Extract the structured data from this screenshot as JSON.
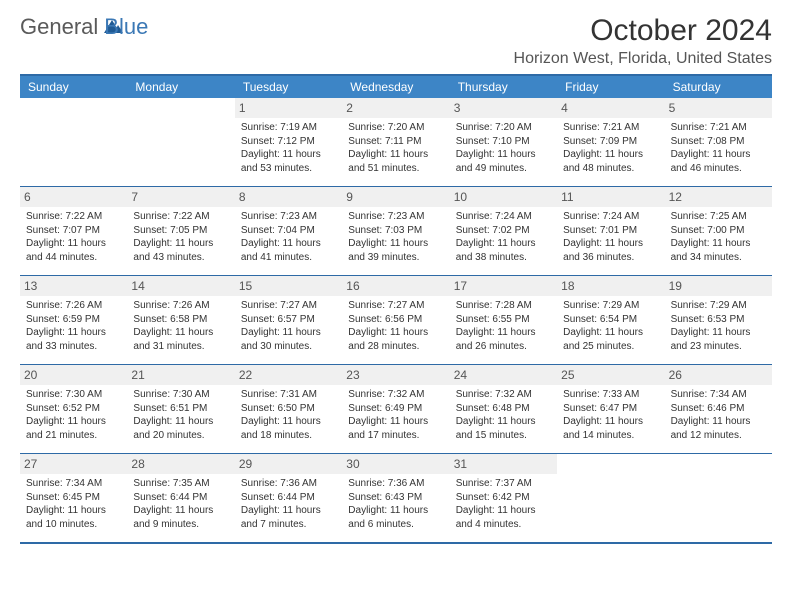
{
  "logo": {
    "text1": "General",
    "text2": "Blue",
    "icon_color": "#1f5a94"
  },
  "title": "October 2024",
  "location": "Horizon West, Florida, United States",
  "header_bg": "#3d85c6",
  "border_color": "#2e6aa6",
  "day_headers": [
    "Sunday",
    "Monday",
    "Tuesday",
    "Wednesday",
    "Thursday",
    "Friday",
    "Saturday"
  ],
  "weeks": [
    {
      "days": [
        {
          "num": "",
          "sunrise": "",
          "sunset": "",
          "daylight": ""
        },
        {
          "num": "",
          "sunrise": "",
          "sunset": "",
          "daylight": ""
        },
        {
          "num": "1",
          "sunrise": "Sunrise: 7:19 AM",
          "sunset": "Sunset: 7:12 PM",
          "daylight": "Daylight: 11 hours and 53 minutes."
        },
        {
          "num": "2",
          "sunrise": "Sunrise: 7:20 AM",
          "sunset": "Sunset: 7:11 PM",
          "daylight": "Daylight: 11 hours and 51 minutes."
        },
        {
          "num": "3",
          "sunrise": "Sunrise: 7:20 AM",
          "sunset": "Sunset: 7:10 PM",
          "daylight": "Daylight: 11 hours and 49 minutes."
        },
        {
          "num": "4",
          "sunrise": "Sunrise: 7:21 AM",
          "sunset": "Sunset: 7:09 PM",
          "daylight": "Daylight: 11 hours and 48 minutes."
        },
        {
          "num": "5",
          "sunrise": "Sunrise: 7:21 AM",
          "sunset": "Sunset: 7:08 PM",
          "daylight": "Daylight: 11 hours and 46 minutes."
        }
      ]
    },
    {
      "days": [
        {
          "num": "6",
          "sunrise": "Sunrise: 7:22 AM",
          "sunset": "Sunset: 7:07 PM",
          "daylight": "Daylight: 11 hours and 44 minutes."
        },
        {
          "num": "7",
          "sunrise": "Sunrise: 7:22 AM",
          "sunset": "Sunset: 7:05 PM",
          "daylight": "Daylight: 11 hours and 43 minutes."
        },
        {
          "num": "8",
          "sunrise": "Sunrise: 7:23 AM",
          "sunset": "Sunset: 7:04 PM",
          "daylight": "Daylight: 11 hours and 41 minutes."
        },
        {
          "num": "9",
          "sunrise": "Sunrise: 7:23 AM",
          "sunset": "Sunset: 7:03 PM",
          "daylight": "Daylight: 11 hours and 39 minutes."
        },
        {
          "num": "10",
          "sunrise": "Sunrise: 7:24 AM",
          "sunset": "Sunset: 7:02 PM",
          "daylight": "Daylight: 11 hours and 38 minutes."
        },
        {
          "num": "11",
          "sunrise": "Sunrise: 7:24 AM",
          "sunset": "Sunset: 7:01 PM",
          "daylight": "Daylight: 11 hours and 36 minutes."
        },
        {
          "num": "12",
          "sunrise": "Sunrise: 7:25 AM",
          "sunset": "Sunset: 7:00 PM",
          "daylight": "Daylight: 11 hours and 34 minutes."
        }
      ]
    },
    {
      "days": [
        {
          "num": "13",
          "sunrise": "Sunrise: 7:26 AM",
          "sunset": "Sunset: 6:59 PM",
          "daylight": "Daylight: 11 hours and 33 minutes."
        },
        {
          "num": "14",
          "sunrise": "Sunrise: 7:26 AM",
          "sunset": "Sunset: 6:58 PM",
          "daylight": "Daylight: 11 hours and 31 minutes."
        },
        {
          "num": "15",
          "sunrise": "Sunrise: 7:27 AM",
          "sunset": "Sunset: 6:57 PM",
          "daylight": "Daylight: 11 hours and 30 minutes."
        },
        {
          "num": "16",
          "sunrise": "Sunrise: 7:27 AM",
          "sunset": "Sunset: 6:56 PM",
          "daylight": "Daylight: 11 hours and 28 minutes."
        },
        {
          "num": "17",
          "sunrise": "Sunrise: 7:28 AM",
          "sunset": "Sunset: 6:55 PM",
          "daylight": "Daylight: 11 hours and 26 minutes."
        },
        {
          "num": "18",
          "sunrise": "Sunrise: 7:29 AM",
          "sunset": "Sunset: 6:54 PM",
          "daylight": "Daylight: 11 hours and 25 minutes."
        },
        {
          "num": "19",
          "sunrise": "Sunrise: 7:29 AM",
          "sunset": "Sunset: 6:53 PM",
          "daylight": "Daylight: 11 hours and 23 minutes."
        }
      ]
    },
    {
      "days": [
        {
          "num": "20",
          "sunrise": "Sunrise: 7:30 AM",
          "sunset": "Sunset: 6:52 PM",
          "daylight": "Daylight: 11 hours and 21 minutes."
        },
        {
          "num": "21",
          "sunrise": "Sunrise: 7:30 AM",
          "sunset": "Sunset: 6:51 PM",
          "daylight": "Daylight: 11 hours and 20 minutes."
        },
        {
          "num": "22",
          "sunrise": "Sunrise: 7:31 AM",
          "sunset": "Sunset: 6:50 PM",
          "daylight": "Daylight: 11 hours and 18 minutes."
        },
        {
          "num": "23",
          "sunrise": "Sunrise: 7:32 AM",
          "sunset": "Sunset: 6:49 PM",
          "daylight": "Daylight: 11 hours and 17 minutes."
        },
        {
          "num": "24",
          "sunrise": "Sunrise: 7:32 AM",
          "sunset": "Sunset: 6:48 PM",
          "daylight": "Daylight: 11 hours and 15 minutes."
        },
        {
          "num": "25",
          "sunrise": "Sunrise: 7:33 AM",
          "sunset": "Sunset: 6:47 PM",
          "daylight": "Daylight: 11 hours and 14 minutes."
        },
        {
          "num": "26",
          "sunrise": "Sunrise: 7:34 AM",
          "sunset": "Sunset: 6:46 PM",
          "daylight": "Daylight: 11 hours and 12 minutes."
        }
      ]
    },
    {
      "days": [
        {
          "num": "27",
          "sunrise": "Sunrise: 7:34 AM",
          "sunset": "Sunset: 6:45 PM",
          "daylight": "Daylight: 11 hours and 10 minutes."
        },
        {
          "num": "28",
          "sunrise": "Sunrise: 7:35 AM",
          "sunset": "Sunset: 6:44 PM",
          "daylight": "Daylight: 11 hours and 9 minutes."
        },
        {
          "num": "29",
          "sunrise": "Sunrise: 7:36 AM",
          "sunset": "Sunset: 6:44 PM",
          "daylight": "Daylight: 11 hours and 7 minutes."
        },
        {
          "num": "30",
          "sunrise": "Sunrise: 7:36 AM",
          "sunset": "Sunset: 6:43 PM",
          "daylight": "Daylight: 11 hours and 6 minutes."
        },
        {
          "num": "31",
          "sunrise": "Sunrise: 7:37 AM",
          "sunset": "Sunset: 6:42 PM",
          "daylight": "Daylight: 11 hours and 4 minutes."
        },
        {
          "num": "",
          "sunrise": "",
          "sunset": "",
          "daylight": ""
        },
        {
          "num": "",
          "sunrise": "",
          "sunset": "",
          "daylight": ""
        }
      ]
    }
  ]
}
